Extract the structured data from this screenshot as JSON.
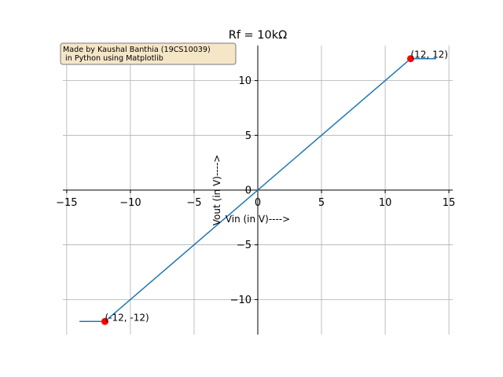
{
  "chart_data": {
    "type": "line",
    "title": "Rf = 10kΩ",
    "xlabel": "Vin (in V)---->",
    "ylabel": "Vout (in V)---->",
    "xlim": [
      -15.3,
      15.3
    ],
    "ylim": [
      -13.2,
      13.2
    ],
    "xticks": [
      -15,
      -10,
      -5,
      0,
      5,
      10,
      15
    ],
    "yticks": [
      -10,
      -5,
      0,
      5,
      10
    ],
    "xtick_labels": [
      "−15",
      "−10",
      "−5",
      "0",
      "5",
      "10",
      "15"
    ],
    "ytick_labels": [
      "−10",
      "−5",
      "0",
      "5",
      "10"
    ],
    "grid": true,
    "series": [
      {
        "color": "#1f77b4",
        "x": [
          -14,
          -12,
          12,
          14
        ],
        "y": [
          -12,
          -12,
          12,
          12
        ]
      }
    ],
    "points": [
      {
        "x": 12,
        "y": 12,
        "label": "(12, 12)",
        "color": "#ff0000"
      },
      {
        "x": -12,
        "y": -12,
        "label": "(-12, -12)",
        "color": "#ff0000"
      }
    ],
    "credit_lines": [
      "Made by Kaushal Banthia (19CS10039)",
      " in Python using Matplotlib"
    ],
    "credit_box_color": "#f5e6c8"
  }
}
